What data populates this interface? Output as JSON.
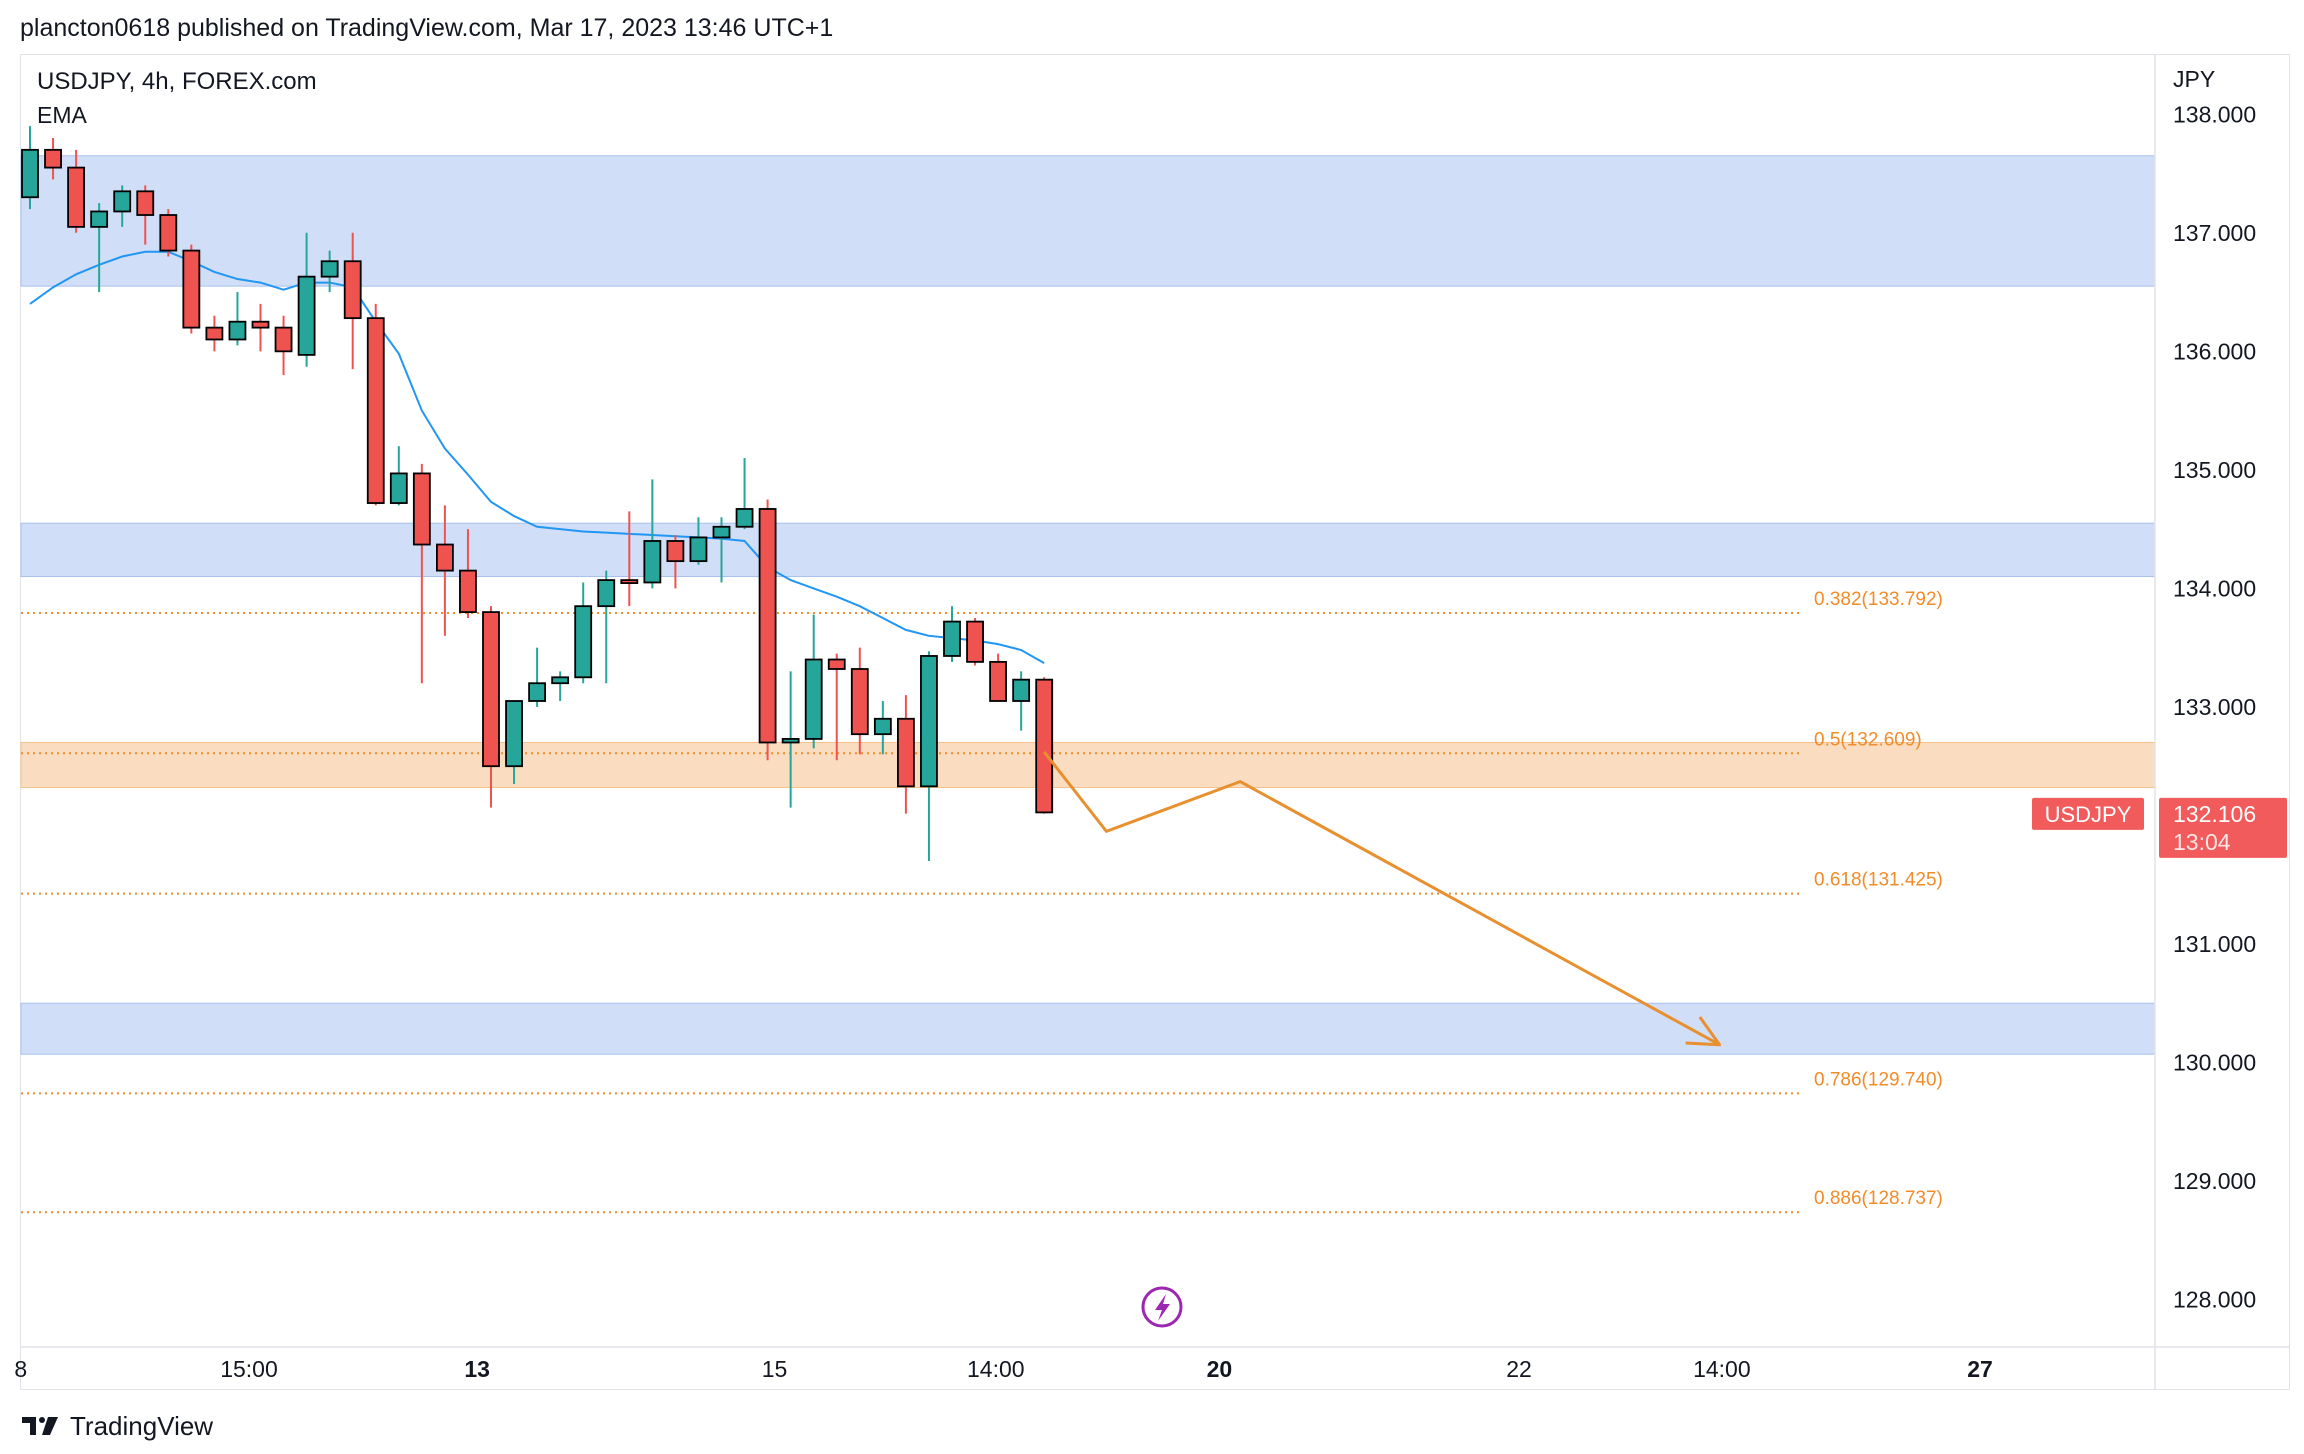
{
  "publish_line": "plancton0618 published on TradingView.com, Mar 17, 2023 13:46 UTC+1",
  "branding": {
    "footer_text": "TradingView",
    "logo_icon": "tradingview-logo-icon"
  },
  "chart_data": {
    "type": "candlestick",
    "symbol_title": "USDJPY, 4h, FOREX.com",
    "indicator_label": "EMA",
    "currency": "JPY",
    "ylim": [
      127.6,
      138.5
    ],
    "y_ticks": [
      "138.000",
      "137.000",
      "136.000",
      "135.000",
      "134.000",
      "133.000",
      "131.000",
      "130.000",
      "129.000",
      "128.000"
    ],
    "x_ticks": [
      {
        "label": "8",
        "bold": false,
        "i": -0.4
      },
      {
        "label": "15:00",
        "bold": false,
        "i": 9.5
      },
      {
        "label": "13",
        "bold": true,
        "i": 19.4
      },
      {
        "label": "15",
        "bold": false,
        "i": 32.3
      },
      {
        "label": "14:00",
        "bold": false,
        "i": 41.9
      },
      {
        "label": "20",
        "bold": true,
        "i": 51.6
      },
      {
        "label": "22",
        "bold": false,
        "i": 64.6
      },
      {
        "label": "14:00",
        "bold": false,
        "i": 73.4
      },
      {
        "label": "27",
        "bold": true,
        "i": 84.6
      }
    ],
    "candles": [
      {
        "o": 137.3,
        "h": 137.9,
        "l": 137.2,
        "c": 137.7
      },
      {
        "o": 137.7,
        "h": 137.8,
        "l": 137.45,
        "c": 137.55
      },
      {
        "o": 137.55,
        "h": 137.7,
        "l": 137.0,
        "c": 137.05
      },
      {
        "o": 137.05,
        "h": 137.25,
        "l": 136.5,
        "c": 137.18
      },
      {
        "o": 137.18,
        "h": 137.4,
        "l": 137.05,
        "c": 137.35
      },
      {
        "o": 137.35,
        "h": 137.4,
        "l": 136.9,
        "c": 137.15
      },
      {
        "o": 137.15,
        "h": 137.2,
        "l": 136.8,
        "c": 136.85
      },
      {
        "o": 136.85,
        "h": 136.9,
        "l": 136.15,
        "c": 136.2
      },
      {
        "o": 136.2,
        "h": 136.3,
        "l": 136.0,
        "c": 136.1
      },
      {
        "o": 136.1,
        "h": 136.5,
        "l": 136.05,
        "c": 136.25
      },
      {
        "o": 136.25,
        "h": 136.4,
        "l": 136.0,
        "c": 136.2
      },
      {
        "o": 136.2,
        "h": 136.3,
        "l": 135.8,
        "c": 136.0
      },
      {
        "o": 135.97,
        "h": 137.0,
        "l": 135.87,
        "c": 136.63
      },
      {
        "o": 136.63,
        "h": 136.85,
        "l": 136.5,
        "c": 136.76
      },
      {
        "o": 136.76,
        "h": 137.0,
        "l": 135.85,
        "c": 136.28
      },
      {
        "o": 136.28,
        "h": 136.4,
        "l": 134.7,
        "c": 134.72
      },
      {
        "o": 134.72,
        "h": 135.2,
        "l": 134.7,
        "c": 134.97
      },
      {
        "o": 134.97,
        "h": 135.05,
        "l": 133.2,
        "c": 134.37
      },
      {
        "o": 134.37,
        "h": 134.7,
        "l": 133.6,
        "c": 134.15
      },
      {
        "o": 134.15,
        "h": 134.5,
        "l": 133.75,
        "c": 133.8
      },
      {
        "o": 133.8,
        "h": 133.85,
        "l": 132.15,
        "c": 132.5
      },
      {
        "o": 132.5,
        "h": 133.0,
        "l": 132.35,
        "c": 133.05
      },
      {
        "o": 133.05,
        "h": 133.5,
        "l": 133.0,
        "c": 133.2
      },
      {
        "o": 133.2,
        "h": 133.3,
        "l": 133.05,
        "c": 133.25
      },
      {
        "o": 133.25,
        "h": 134.05,
        "l": 133.2,
        "c": 133.85
      },
      {
        "o": 133.85,
        "h": 134.15,
        "l": 133.2,
        "c": 134.07
      },
      {
        "o": 134.07,
        "h": 134.65,
        "l": 133.85,
        "c": 134.05
      },
      {
        "o": 134.05,
        "h": 134.92,
        "l": 134.0,
        "c": 134.4
      },
      {
        "o": 134.4,
        "h": 134.45,
        "l": 134.0,
        "c": 134.23
      },
      {
        "o": 134.23,
        "h": 134.6,
        "l": 134.2,
        "c": 134.43
      },
      {
        "o": 134.43,
        "h": 134.6,
        "l": 134.05,
        "c": 134.52
      },
      {
        "o": 134.52,
        "h": 135.1,
        "l": 134.5,
        "c": 134.67
      },
      {
        "o": 134.67,
        "h": 134.75,
        "l": 132.55,
        "c": 132.7
      },
      {
        "o": 132.7,
        "h": 133.3,
        "l": 132.15,
        "c": 132.73
      },
      {
        "o": 132.73,
        "h": 133.78,
        "l": 132.65,
        "c": 133.4
      },
      {
        "o": 133.4,
        "h": 133.45,
        "l": 132.55,
        "c": 133.32
      },
      {
        "o": 133.32,
        "h": 133.5,
        "l": 132.6,
        "c": 132.77
      },
      {
        "o": 132.77,
        "h": 133.05,
        "l": 132.6,
        "c": 132.9
      },
      {
        "o": 132.9,
        "h": 133.1,
        "l": 132.1,
        "c": 132.33
      },
      {
        "o": 132.33,
        "h": 133.47,
        "l": 131.7,
        "c": 133.43
      },
      {
        "o": 133.43,
        "h": 133.85,
        "l": 133.38,
        "c": 133.72
      },
      {
        "o": 133.72,
        "h": 133.75,
        "l": 133.35,
        "c": 133.38
      },
      {
        "o": 133.38,
        "h": 133.45,
        "l": 133.05,
        "c": 133.05
      },
      {
        "o": 133.05,
        "h": 133.3,
        "l": 132.8,
        "c": 133.23
      },
      {
        "o": 133.23,
        "h": 133.25,
        "l": 132.1,
        "c": 132.11
      }
    ],
    "ema": [
      136.4,
      136.54,
      136.65,
      136.73,
      136.8,
      136.84,
      136.84,
      136.76,
      136.67,
      136.61,
      136.58,
      136.52,
      136.58,
      136.58,
      136.54,
      136.25,
      135.98,
      135.5,
      135.18,
      134.96,
      134.73,
      134.61,
      134.52,
      134.5,
      134.48,
      134.47,
      134.46,
      134.45,
      134.44,
      134.43,
      134.42,
      134.4,
      134.18,
      134.07,
      134.0,
      133.93,
      133.85,
      133.75,
      133.65,
      133.6,
      133.58,
      133.56,
      133.53,
      133.48,
      133.37
    ],
    "zones": [
      {
        "top": 137.65,
        "bottom": 136.55
      },
      {
        "top": 134.55,
        "bottom": 134.1
      },
      {
        "top": 130.5,
        "bottom": 130.07
      }
    ],
    "orange_zone": {
      "top": 132.7,
      "bottom": 132.32
    },
    "fib_levels": [
      {
        "label": "0.382(133.792)",
        "value": 133.792
      },
      {
        "label": "0.5(132.609)",
        "value": 132.609
      },
      {
        "label": "0.618(131.425)",
        "value": 131.425
      },
      {
        "label": "0.786(129.740)",
        "value": 129.74
      },
      {
        "label": "0.886(128.737)",
        "value": 128.737
      }
    ],
    "projection_path": [
      {
        "i": 44.0,
        "y": 132.62
      },
      {
        "i": 46.7,
        "y": 131.95
      },
      {
        "i": 52.5,
        "y": 132.37
      },
      {
        "i": 73.3,
        "y": 130.15
      }
    ],
    "last_price": {
      "symbol": "USDJPY",
      "price": "132.106",
      "countdown": "13:04",
      "value": 132.106
    },
    "colors": {
      "up": "#26a69a",
      "down": "#ef5350",
      "ema": "#2196f3",
      "zone": "#cfdcf7",
      "zone_border": "#a9c0ee",
      "orange_zone": "#fad8b9",
      "fib": "#f08c2a",
      "projection": "#e8902f",
      "label_bg": "#f15b5b",
      "lightning": "#9c27b0"
    },
    "lightning_icon": "lightning-icon"
  }
}
